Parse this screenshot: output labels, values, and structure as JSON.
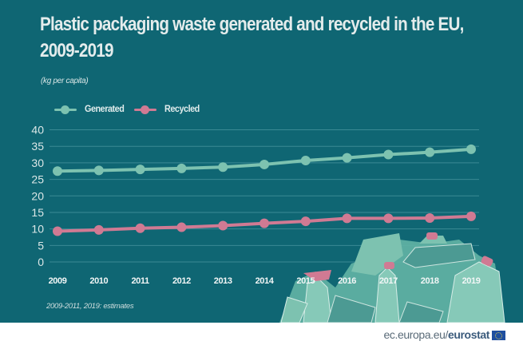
{
  "header": {
    "title_line1": "Plastic packaging waste generated and recycled in the EU,",
    "title_line2": "2009-2019",
    "subtitle": "(kg per capita)"
  },
  "legend": [
    {
      "label": "Generated",
      "color": "#7dc2b0"
    },
    {
      "label": "Recycled",
      "color": "#d07a93"
    }
  ],
  "note": "2009-2011, 2019: estimates",
  "footer": {
    "site": "ec.europa.eu/",
    "brand": "eurostat",
    "flag_icon": "eu-flag-icon"
  },
  "colors": {
    "background": "#0f6673",
    "gridline": "#3b8a94",
    "generated": "#7dc2b0",
    "recycled": "#d07a93"
  },
  "chart_data": {
    "type": "line",
    "title": "Plastic packaging waste generated and recycled in the EU, 2009-2019",
    "subtitle": "(kg per capita)",
    "xlabel": "",
    "ylabel": "kg per capita",
    "categories": [
      "2009",
      "2010",
      "2011",
      "2012",
      "2013",
      "2014",
      "2015",
      "2016",
      "2017",
      "2018",
      "2019"
    ],
    "ylim": [
      0,
      40
    ],
    "yticks": [
      0,
      5,
      10,
      15,
      20,
      25,
      30,
      35,
      40
    ],
    "grid": true,
    "legend_position": "top-left",
    "series": [
      {
        "name": "Generated",
        "values": [
          27.5,
          27.7,
          28.0,
          28.3,
          28.7,
          29.5,
          30.7,
          31.5,
          32.5,
          33.2,
          34.1
        ]
      },
      {
        "name": "Recycled",
        "values": [
          9.3,
          9.7,
          10.2,
          10.5,
          11.0,
          11.7,
          12.3,
          13.2,
          13.2,
          13.3,
          13.8
        ]
      }
    ],
    "annotations": [
      "2009-2011, 2019: estimates"
    ]
  }
}
